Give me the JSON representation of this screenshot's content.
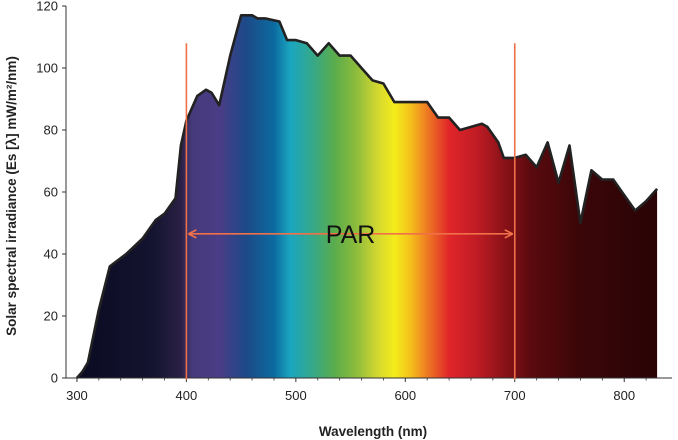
{
  "chart_data": {
    "type": "area",
    "title": "",
    "xlabel": "Wavelength (nm)",
    "ylabel": "Solar spectral irradiance  (Es [λ] mW/m²/nm)",
    "xlim": [
      290,
      840
    ],
    "ylim": [
      0,
      120
    ],
    "x_ticks": [
      300,
      400,
      500,
      600,
      700,
      800
    ],
    "y_ticks": [
      0,
      20,
      40,
      60,
      80,
      100,
      120
    ],
    "grid": false,
    "fill": "visible-spectrum color gradient under curve",
    "series": [
      {
        "x": [
          300,
          305,
          310,
          320,
          330,
          345,
          360,
          372,
          380,
          390,
          395,
          400,
          410,
          418,
          423,
          430,
          440,
          450,
          460,
          465,
          472,
          485,
          492,
          500,
          510,
          520,
          530,
          540,
          550,
          560,
          570,
          580,
          590,
          600,
          612,
          620,
          630,
          640,
          650,
          660,
          670,
          675,
          685,
          690,
          700,
          710,
          720,
          730,
          740,
          750,
          760,
          770,
          780,
          790,
          800,
          810,
          820,
          830
        ],
        "y": [
          0,
          2,
          5,
          22,
          36,
          40,
          45,
          51,
          53,
          58,
          75,
          83,
          91,
          93,
          92,
          88,
          104,
          117,
          117,
          116,
          116,
          115,
          109,
          109,
          108,
          104,
          108,
          104,
          104,
          100,
          96,
          95,
          89,
          89,
          89,
          89,
          84,
          84,
          80,
          81,
          82,
          81,
          76,
          71,
          71,
          72,
          68,
          76,
          63,
          75,
          50,
          67,
          64,
          64,
          59,
          54,
          57,
          61
        ]
      }
    ],
    "annotations": {
      "par_label": "PAR",
      "par_range": [
        400,
        700
      ]
    }
  },
  "colors": {
    "curve": "#222222",
    "par_lines": "#f07048",
    "axis": "#333333"
  }
}
